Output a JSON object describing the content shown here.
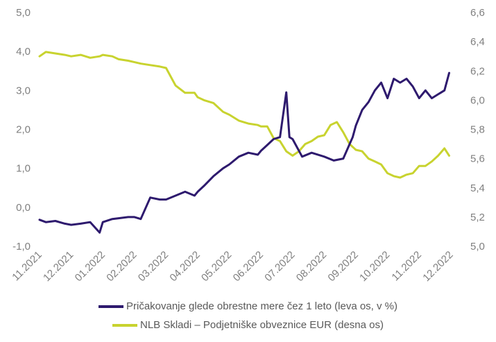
{
  "chart_data": {
    "type": "line",
    "categories": [
      "11.2021",
      "12.2021",
      "01.2022",
      "02.2022",
      "03.2022",
      "04.2022",
      "05.2022",
      "06.2022",
      "07.2022",
      "08.2022",
      "09.2022",
      "10.2022",
      "11.2022",
      "12.2022"
    ],
    "left_axis": {
      "min": -1.0,
      "max": 5.0,
      "ticks": [
        "-1,0",
        "0,0",
        "1,0",
        "2,0",
        "3,0",
        "4,0",
        "5,0"
      ]
    },
    "right_axis": {
      "min": 5.0,
      "max": 6.6,
      "ticks": [
        "5,0",
        "5,2",
        "5,4",
        "5,6",
        "5,8",
        "6,0",
        "6,2",
        "6,4",
        "6,6"
      ]
    },
    "grid": false,
    "legend_position": "bottom",
    "series": [
      {
        "name": "Pričakovanje glede obrestne mere čez 1 leto (leva os, v %)",
        "axis": "left",
        "color": "#2e1a6e",
        "x": [
          0,
          0.2,
          0.5,
          0.8,
          1.0,
          1.3,
          1.6,
          1.9,
          2.0,
          2.3,
          2.5,
          2.8,
          3.0,
          3.2,
          3.5,
          3.8,
          4.0,
          4.3,
          4.6,
          4.9,
          5.0,
          5.2,
          5.5,
          5.8,
          6.0,
          6.3,
          6.6,
          6.9,
          7.0,
          7.2,
          7.4,
          7.6,
          7.8,
          7.9,
          8.0,
          8.3,
          8.6,
          9.0,
          9.3,
          9.6,
          9.9,
          10.0,
          10.2,
          10.4,
          10.6,
          10.8,
          11.0,
          11.2,
          11.4,
          11.6,
          11.8,
          12.0,
          12.2,
          12.4,
          12.6,
          12.8,
          12.95
        ],
        "values": [
          -0.32,
          -0.38,
          -0.35,
          -0.42,
          -0.45,
          -0.42,
          -0.38,
          -0.65,
          -0.38,
          -0.3,
          -0.28,
          -0.25,
          -0.25,
          -0.3,
          0.25,
          0.2,
          0.2,
          0.3,
          0.4,
          0.3,
          0.4,
          0.55,
          0.8,
          1.0,
          1.1,
          1.3,
          1.4,
          1.35,
          1.45,
          1.6,
          1.75,
          1.8,
          2.95,
          1.8,
          1.75,
          1.3,
          1.4,
          1.3,
          1.2,
          1.25,
          1.8,
          2.1,
          2.5,
          2.7,
          3.0,
          3.2,
          2.8,
          3.3,
          3.2,
          3.3,
          3.1,
          2.8,
          3.0,
          2.8,
          2.9,
          3.0,
          3.45
        ]
      },
      {
        "name": "NLB Skladi – Podjetniške obveznice EUR (desna os)",
        "axis": "right",
        "color": "#c8d32f",
        "x": [
          0,
          0.2,
          0.5,
          0.8,
          1.0,
          1.3,
          1.6,
          1.9,
          2.0,
          2.3,
          2.5,
          2.8,
          3.0,
          3.2,
          3.5,
          3.8,
          4.0,
          4.3,
          4.6,
          4.9,
          5.0,
          5.2,
          5.5,
          5.8,
          6.0,
          6.3,
          6.6,
          6.9,
          7.0,
          7.2,
          7.4,
          7.6,
          7.8,
          8.0,
          8.2,
          8.4,
          8.6,
          8.8,
          9.0,
          9.2,
          9.4,
          9.6,
          9.8,
          10.0,
          10.2,
          10.4,
          10.6,
          10.8,
          11.0,
          11.2,
          11.4,
          11.6,
          11.8,
          12.0,
          12.2,
          12.4,
          12.6,
          12.8,
          12.95
        ],
        "values": [
          6.3,
          6.33,
          6.32,
          6.31,
          6.3,
          6.31,
          6.29,
          6.3,
          6.31,
          6.3,
          6.28,
          6.27,
          6.26,
          6.25,
          6.24,
          6.23,
          6.22,
          6.1,
          6.05,
          6.05,
          6.02,
          6.0,
          5.98,
          5.92,
          5.9,
          5.86,
          5.84,
          5.83,
          5.82,
          5.82,
          5.74,
          5.72,
          5.65,
          5.62,
          5.65,
          5.7,
          5.72,
          5.75,
          5.76,
          5.83,
          5.85,
          5.78,
          5.7,
          5.66,
          5.65,
          5.6,
          5.58,
          5.56,
          5.5,
          5.48,
          5.47,
          5.49,
          5.5,
          5.55,
          5.55,
          5.58,
          5.62,
          5.67,
          5.62
        ]
      }
    ]
  }
}
